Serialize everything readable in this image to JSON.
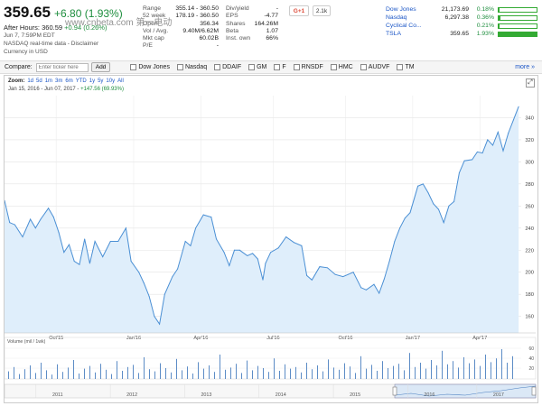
{
  "quote": {
    "price": "359.65",
    "change": "+6.80 (1.93%)",
    "after_hours_label": "After Hours:",
    "after_hours_price": "360.59",
    "after_hours_change": "+0.94 (0.26%)",
    "timestamp": "Jun 7, 7:59PM EDT",
    "disclaimer": "NASDAQ real-time data - Disclaimer",
    "currency": "Currency in USD",
    "watermark": "www.cnbeta.com 第一电动"
  },
  "stats_left": [
    {
      "k": "Range",
      "v": "355.14 - 360.50"
    },
    {
      "k": "52 week",
      "v": "178.19 - 360.50"
    },
    {
      "k": "Open",
      "v": "356.34"
    },
    {
      "k": "Vol / Avg.",
      "v": "9.40M/6.62M"
    },
    {
      "k": "Mkt cap",
      "v": "60.02B"
    },
    {
      "k": "P/E",
      "v": "-"
    }
  ],
  "stats_right": [
    {
      "k": "Div/yield",
      "v": "-"
    },
    {
      "k": "EPS",
      "v": "-4.77"
    },
    {
      "k": "Shares",
      "v": "164.26M"
    },
    {
      "k": "Beta",
      "v": "1.07"
    },
    {
      "k": "Inst. own",
      "v": "66%"
    }
  ],
  "social": {
    "gplus": "G+1",
    "count": "2.1k"
  },
  "compare_table": [
    {
      "name": "Dow Jones",
      "price": "21,173.69",
      "pct": "0.18%",
      "bar": 0.02
    },
    {
      "name": "Nasdaq",
      "price": "6,297.38",
      "pct": "0.36%",
      "bar": 0.05
    },
    {
      "name": "Cyclical Co...",
      "price": "",
      "pct": "0.21%",
      "bar": 0.03
    },
    {
      "name": "TSLA",
      "price": "359.65",
      "pct": "1.93%",
      "bar": 1.0
    }
  ],
  "compare_bar": {
    "label": "Compare:",
    "placeholder": "Enter ticker here",
    "add": "Add",
    "items": [
      "Dow Jones",
      "Nasdaq",
      "DDAIF",
      "GM",
      "F",
      "RNSDF",
      "HMC",
      "AUDVF",
      "TM"
    ],
    "more": "more »"
  },
  "zoom": {
    "label": "Zoom:",
    "buttons": [
      "1d",
      "5d",
      "1m",
      "3m",
      "6m",
      "YTD",
      "1y",
      "5y",
      "10y",
      "All"
    ],
    "range_start": "Jan 15, 2016",
    "range_sep": "- Jun 07, 2017 -",
    "range_change": "+147.56 (69.93%)"
  },
  "colors": {
    "line": "#4a8fd4",
    "fill": "#dfeefb",
    "up": "#1e8e3e",
    "link": "#1a55c6"
  },
  "chart_data": {
    "type": "area",
    "ylim": [
      145,
      360
    ],
    "yticks": [
      160,
      180,
      200,
      220,
      240,
      260,
      280,
      300,
      320,
      340
    ],
    "xticks": [
      "Oct'15",
      "Jan'16",
      "Apr'16",
      "Jul'16",
      "Oct'16",
      "Jan'17",
      "Apr'17"
    ],
    "x_range": [
      0,
      1
    ],
    "xtick_pos": [
      0.1,
      0.25,
      0.38,
      0.52,
      0.66,
      0.79,
      0.92
    ],
    "points": [
      [
        0.0,
        265
      ],
      [
        0.01,
        245
      ],
      [
        0.02,
        243
      ],
      [
        0.035,
        232
      ],
      [
        0.05,
        248
      ],
      [
        0.06,
        240
      ],
      [
        0.07,
        248
      ],
      [
        0.085,
        258
      ],
      [
        0.095,
        250
      ],
      [
        0.105,
        236
      ],
      [
        0.115,
        218
      ],
      [
        0.125,
        225
      ],
      [
        0.135,
        210
      ],
      [
        0.145,
        207
      ],
      [
        0.155,
        230
      ],
      [
        0.165,
        208
      ],
      [
        0.175,
        228
      ],
      [
        0.19,
        214
      ],
      [
        0.205,
        228
      ],
      [
        0.22,
        228
      ],
      [
        0.235,
        240
      ],
      [
        0.245,
        210
      ],
      [
        0.26,
        200
      ],
      [
        0.27,
        190
      ],
      [
        0.28,
        178
      ],
      [
        0.29,
        160
      ],
      [
        0.3,
        153
      ],
      [
        0.31,
        180
      ],
      [
        0.325,
        196
      ],
      [
        0.335,
        203
      ],
      [
        0.35,
        228
      ],
      [
        0.36,
        224
      ],
      [
        0.37,
        240
      ],
      [
        0.385,
        252
      ],
      [
        0.4,
        250
      ],
      [
        0.41,
        230
      ],
      [
        0.425,
        218
      ],
      [
        0.435,
        206
      ],
      [
        0.445,
        220
      ],
      [
        0.455,
        220
      ],
      [
        0.47,
        215
      ],
      [
        0.48,
        217
      ],
      [
        0.49,
        212
      ],
      [
        0.5,
        193
      ],
      [
        0.505,
        208
      ],
      [
        0.515,
        218
      ],
      [
        0.53,
        222
      ],
      [
        0.545,
        232
      ],
      [
        0.56,
        227
      ],
      [
        0.575,
        224
      ],
      [
        0.585,
        197
      ],
      [
        0.595,
        193
      ],
      [
        0.61,
        205
      ],
      [
        0.625,
        204
      ],
      [
        0.64,
        198
      ],
      [
        0.655,
        196
      ],
      [
        0.665,
        198
      ],
      [
        0.675,
        200
      ],
      [
        0.69,
        186
      ],
      [
        0.7,
        184
      ],
      [
        0.715,
        189
      ],
      [
        0.725,
        181
      ],
      [
        0.735,
        194
      ],
      [
        0.745,
        210
      ],
      [
        0.755,
        228
      ],
      [
        0.765,
        240
      ],
      [
        0.775,
        249
      ],
      [
        0.785,
        254
      ],
      [
        0.8,
        278
      ],
      [
        0.81,
        280
      ],
      [
        0.82,
        272
      ],
      [
        0.83,
        262
      ],
      [
        0.84,
        257
      ],
      [
        0.85,
        245
      ],
      [
        0.86,
        260
      ],
      [
        0.87,
        264
      ],
      [
        0.88,
        290
      ],
      [
        0.89,
        301
      ],
      [
        0.905,
        302
      ],
      [
        0.915,
        309
      ],
      [
        0.925,
        308
      ],
      [
        0.935,
        320
      ],
      [
        0.945,
        315
      ],
      [
        0.955,
        327
      ],
      [
        0.965,
        310
      ],
      [
        0.975,
        326
      ],
      [
        0.985,
        338
      ],
      [
        0.995,
        350
      ]
    ],
    "volume_label": "Volume (mil / 1wk)",
    "volume_ticks": [
      "60",
      "40",
      "20"
    ],
    "volume": [
      14,
      22,
      9,
      18,
      25,
      11,
      30,
      16,
      8,
      27,
      13,
      21,
      35,
      10,
      19,
      24,
      12,
      28,
      17,
      9,
      33,
      15,
      22,
      26,
      11,
      40,
      18,
      14,
      29,
      20,
      12,
      37,
      16,
      23,
      10,
      31,
      19,
      25,
      13,
      45,
      17,
      21,
      28,
      11,
      34,
      16,
      24,
      20,
      13,
      38,
      15,
      27,
      19,
      22,
      12,
      30,
      18,
      25,
      14,
      36,
      21,
      17,
      29,
      23,
      11,
      42,
      19,
      26,
      15,
      33,
      20,
      24,
      28,
      16,
      48,
      22,
      30,
      19,
      35,
      25,
      52,
      27,
      33,
      21,
      40,
      29,
      36,
      24,
      45,
      31,
      38,
      55,
      30,
      42
    ]
  },
  "timeline": {
    "years": [
      "2011",
      "2012",
      "2013",
      "2014",
      "2015",
      "2016",
      "2017"
    ]
  }
}
